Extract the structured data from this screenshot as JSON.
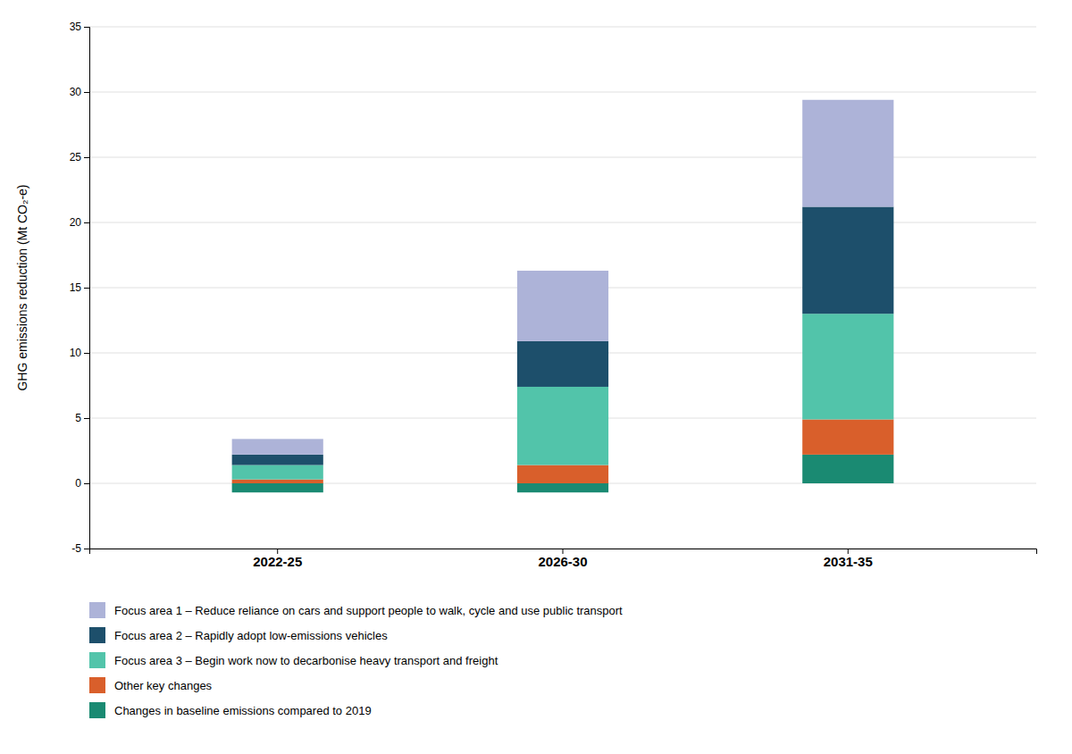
{
  "chart_data": {
    "type": "bar",
    "stacked": true,
    "categories": [
      "2022-25",
      "2026-30",
      "2031-35"
    ],
    "series": [
      {
        "name": "Changes in baseline emissions compared to 2019",
        "color": "#1a8a72",
        "values": [
          -0.7,
          -0.7,
          2.2
        ]
      },
      {
        "name": "Other key changes",
        "color": "#d95f2b",
        "values": [
          0.3,
          1.4,
          2.7
        ]
      },
      {
        "name": "Focus area 3 – Begin work now to decarbonise heavy transport and freight",
        "color": "#52c4aa",
        "values": [
          1.1,
          6.0,
          8.1
        ]
      },
      {
        "name": "Focus area 2 – Rapidly adopt low-emissions vehicles",
        "color": "#1d4f6b",
        "values": [
          0.8,
          3.5,
          8.2
        ]
      },
      {
        "name": "Focus area 1 – Reduce reliance on cars and support people to walk, cycle and use public transport",
        "color": "#adb3d8",
        "values": [
          1.2,
          5.4,
          8.2
        ]
      }
    ],
    "ylabel": "GHG emissions reduction (Mt CO₂-e)",
    "ylim": [
      -5,
      35
    ],
    "yticks": [
      -5,
      0,
      5,
      10,
      15,
      20,
      25,
      30,
      35
    ],
    "grid": true,
    "legend": "bottom"
  }
}
